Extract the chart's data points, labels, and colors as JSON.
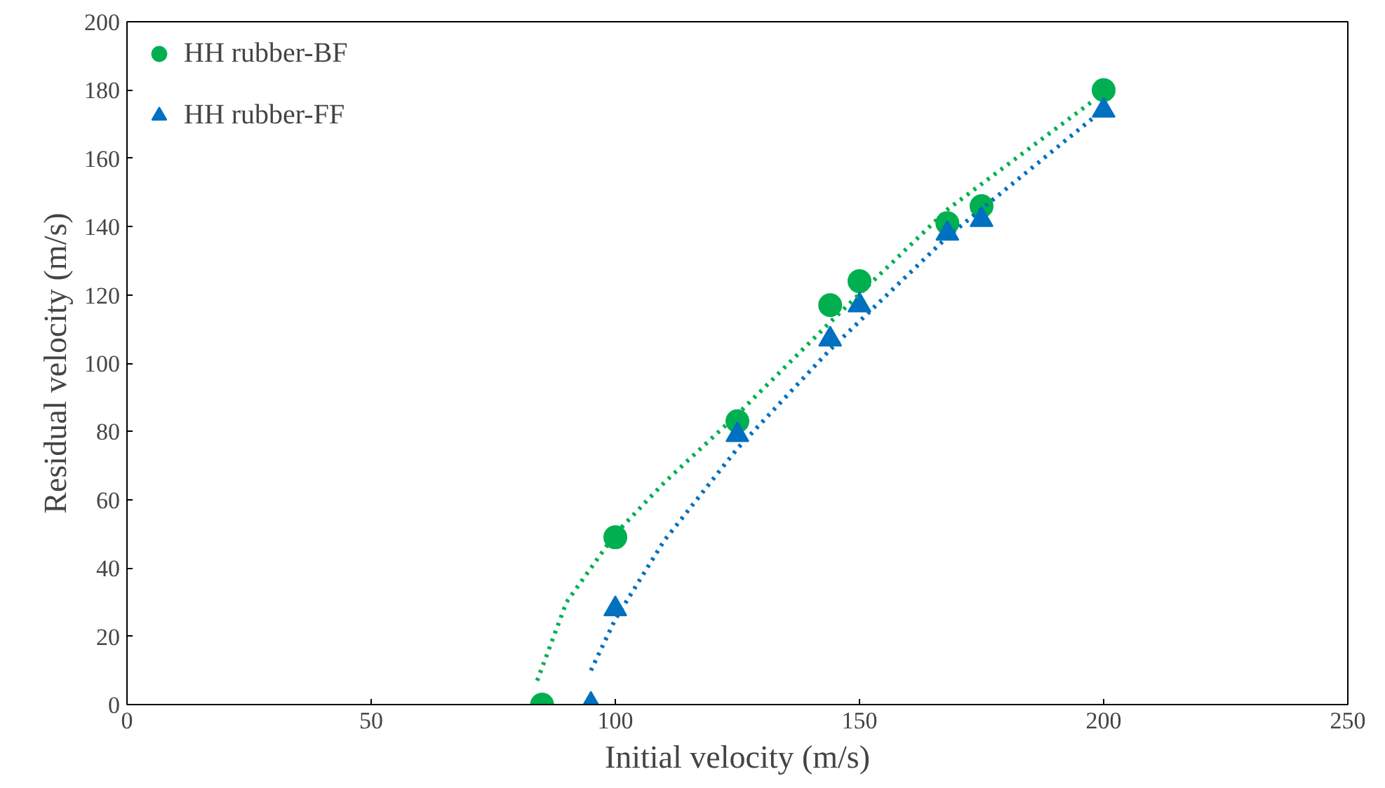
{
  "chart_data": {
    "type": "scatter",
    "xlabel": "Initial velocity (m/s)",
    "ylabel": "Residual velocity (m/s)",
    "xlim": [
      0,
      250
    ],
    "xticks": [
      0,
      50,
      100,
      150,
      200,
      250
    ],
    "ylim": [
      0,
      200
    ],
    "yticks": [
      0,
      20,
      40,
      60,
      80,
      100,
      120,
      140,
      160,
      180,
      200
    ],
    "grid": false,
    "legend": "top left",
    "series": [
      {
        "name": "HH rubber-BF",
        "marker": "circle",
        "color": "#00b050",
        "x": [
          85,
          100,
          125,
          144,
          150,
          168,
          175,
          200
        ],
        "values": [
          0,
          49,
          83,
          117,
          124,
          141,
          146,
          180
        ]
      },
      {
        "name": "HH rubber-FF",
        "marker": "triangle",
        "color": "#0070c0",
        "x": [
          95,
          100,
          125,
          144,
          150,
          168,
          175,
          200
        ],
        "values": [
          0,
          28,
          79,
          107,
          117,
          138,
          142,
          174
        ]
      },
      {
        "type": "line",
        "line_style": "dotted",
        "color": "#00b050",
        "x": [
          84,
          90,
          100,
          110,
          125,
          144,
          168,
          198
        ],
        "values": [
          7,
          30,
          50,
          65,
          85,
          112,
          145,
          177
        ]
      },
      {
        "type": "line",
        "line_style": "dotted",
        "color": "#0070c0",
        "x": [
          95,
          100,
          110,
          125,
          144,
          168,
          198
        ],
        "values": [
          10,
          25,
          48,
          75,
          104,
          137,
          172
        ]
      }
    ]
  }
}
